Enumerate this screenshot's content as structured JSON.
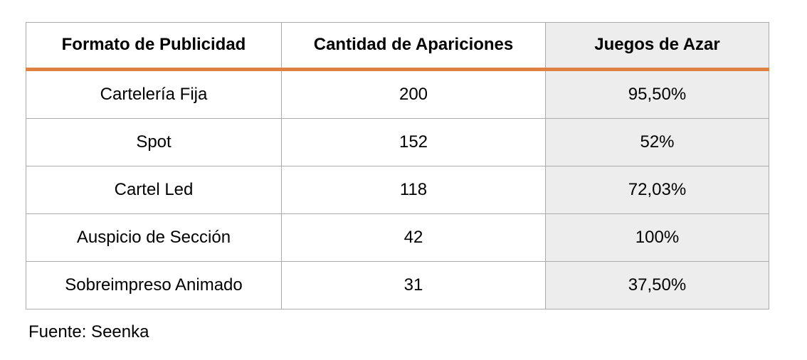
{
  "chart_data": {
    "type": "table",
    "title": "",
    "columns": [
      "Formato de Publicidad",
      "Cantidad de Apariciones",
      "Juegos de Azar"
    ],
    "rows": [
      [
        "Cartelería Fija",
        "200",
        "95,50%"
      ],
      [
        "Spot",
        "152",
        "52%"
      ],
      [
        "Cartel Led",
        "118",
        "72,03%"
      ],
      [
        "Auspicio de Sección",
        "42",
        "100%"
      ],
      [
        "Sobreimpreso Animado",
        "31",
        "37,50%"
      ]
    ],
    "highlight_column_index": 2,
    "source": "Fuente: Seenka"
  },
  "colors": {
    "accent_orange": "#de8244",
    "border_gray": "#ababab",
    "highlight_column_bg": "#ededed",
    "text": "#000000",
    "background": "#ffffff"
  }
}
